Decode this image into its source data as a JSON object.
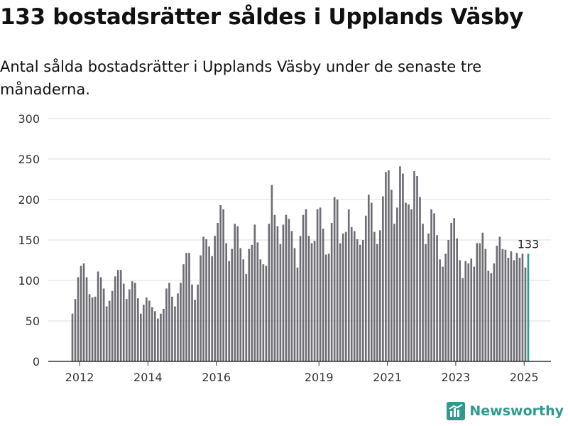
{
  "header": {
    "title": "133 bostadsrätter såldes i Upplands Väsby",
    "subtitle": "Antal sålda bostadsrätter i Upplands Väsby under de senaste tre månaderna."
  },
  "brand": {
    "name": "Newsworthy"
  },
  "colors": {
    "bar": "#6e6d74",
    "highlight": "#2a9d8f",
    "grid": "#dddddd",
    "axis": "#333333"
  },
  "chart_data": {
    "type": "bar",
    "title": "133 bostadsrätter såldes i Upplands Väsby",
    "subtitle": "Antal sålda bostadsrätter i Upplands Väsby under de senaste tre månaderna.",
    "xlabel": "",
    "ylabel": "",
    "ylim": [
      0,
      300
    ],
    "yticks": [
      0,
      50,
      100,
      150,
      200,
      250,
      300
    ],
    "grid": true,
    "x_start": 2011.75,
    "x_step": 0.0833,
    "xticks": [
      {
        "label": "2012",
        "x": 2012
      },
      {
        "label": "2014",
        "x": 2014
      },
      {
        "label": "2016",
        "x": 2016
      },
      {
        "label": "2019",
        "x": 2019
      },
      {
        "label": "2021",
        "x": 2021
      },
      {
        "label": "2023",
        "x": 2023
      },
      {
        "label": "2025",
        "x": 2025
      }
    ],
    "values": [
      59,
      77,
      104,
      118,
      121,
      104,
      83,
      79,
      80,
      111,
      104,
      90,
      68,
      75,
      87,
      105,
      113,
      113,
      96,
      77,
      89,
      99,
      97,
      78,
      59,
      70,
      79,
      75,
      67,
      62,
      53,
      59,
      65,
      90,
      97,
      80,
      68,
      84,
      97,
      120,
      134,
      134,
      95,
      76,
      95,
      131,
      154,
      151,
      142,
      130,
      155,
      171,
      193,
      188,
      146,
      124,
      139,
      170,
      167,
      140,
      126,
      108,
      139,
      144,
      169,
      147,
      126,
      120,
      118,
      170,
      218,
      181,
      167,
      145,
      169,
      181,
      176,
      161,
      140,
      116,
      155,
      181,
      188,
      155,
      146,
      149,
      188,
      190,
      164,
      132,
      133,
      171,
      203,
      200,
      146,
      158,
      160,
      188,
      166,
      161,
      151,
      144,
      150,
      180,
      206,
      196,
      160,
      145,
      162,
      204,
      234,
      236,
      212,
      170,
      190,
      241,
      232,
      196,
      194,
      188,
      235,
      229,
      203,
      170,
      145,
      158,
      188,
      183,
      156,
      126,
      117,
      133,
      150,
      171,
      177,
      152,
      125,
      103,
      124,
      121,
      127,
      117,
      146,
      146,
      159,
      139,
      112,
      109,
      121,
      143,
      154,
      139,
      138,
      128,
      136,
      125,
      134,
      128,
      133,
      116,
      133
    ],
    "highlight_index": 160,
    "value_label": "133"
  }
}
